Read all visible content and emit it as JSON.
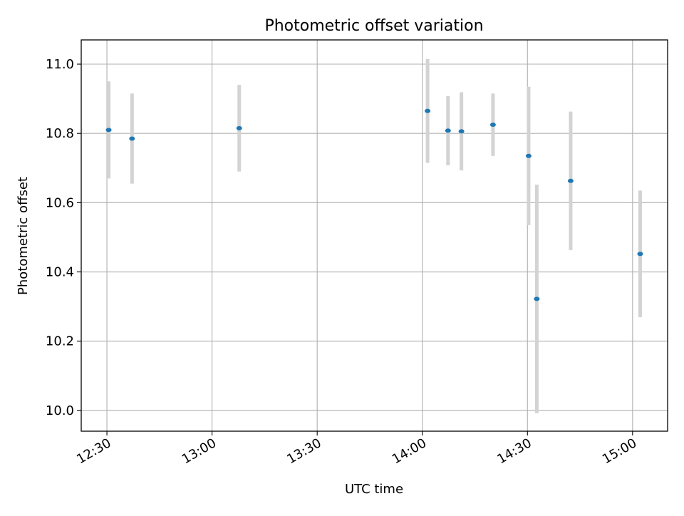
{
  "chart_data": {
    "type": "scatter",
    "title": "Photometric offset variation",
    "xlabel": "UTC time",
    "ylabel": "Photometric offset",
    "grid": true,
    "x_ticks": [
      "12:30",
      "13:00",
      "13:30",
      "14:00",
      "14:30",
      "15:00"
    ],
    "y_ticks": [
      "10.0",
      "10.2",
      "10.4",
      "10.6",
      "10.8",
      "11.0"
    ],
    "xlim": [
      "12:22:40",
      "15:10:00"
    ],
    "ylim": [
      9.94,
      11.07
    ],
    "series": [
      {
        "marker_color": "#1f77b4",
        "errorbar_color": "#d3d3d3",
        "points": [
          {
            "time": "12:30:30",
            "y": 10.81,
            "yerr": 0.14
          },
          {
            "time": "12:37:10",
            "y": 10.785,
            "yerr": 0.13
          },
          {
            "time": "13:07:45",
            "y": 10.815,
            "yerr": 0.125
          },
          {
            "time": "14:01:30",
            "y": 10.865,
            "yerr": 0.15
          },
          {
            "time": "14:07:20",
            "y": 10.808,
            "yerr": 0.1
          },
          {
            "time": "14:11:10",
            "y": 10.806,
            "yerr": 0.113
          },
          {
            "time": "14:20:10",
            "y": 10.825,
            "yerr": 0.09
          },
          {
            "time": "14:30:20",
            "y": 10.735,
            "yerr": 0.2
          },
          {
            "time": "14:32:40",
            "y": 10.322,
            "yerr": 0.33
          },
          {
            "time": "14:42:20",
            "y": 10.663,
            "yerr": 0.2
          },
          {
            "time": "15:02:10",
            "y": 10.452,
            "yerr": 0.183
          }
        ]
      }
    ]
  }
}
